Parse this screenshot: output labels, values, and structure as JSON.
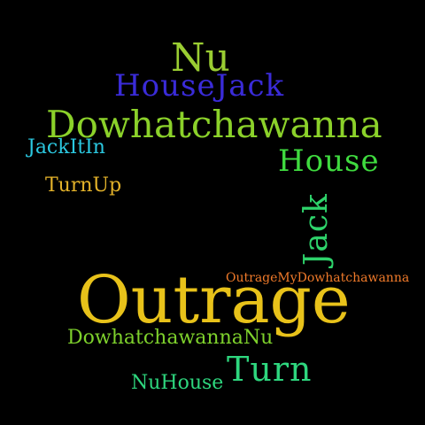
{
  "words": [
    {
      "text": "Nu",
      "color": "#9ACD32"
    },
    {
      "text": "HouseJack",
      "color": "#3A2BD8"
    },
    {
      "text": "Dowhatchawanna",
      "color": "#8BD12A"
    },
    {
      "text": "JackItIn",
      "color": "#2BC8E0"
    },
    {
      "text": "House",
      "color": "#3FDB3F"
    },
    {
      "text": "TurnUp",
      "color": "#E3B22A"
    },
    {
      "text": "Jack",
      "color": "#2ED36B"
    },
    {
      "text": "OutrageMyDowhatchawanna",
      "color": "#F07A2A"
    },
    {
      "text": "Outrage",
      "color": "#E8C21A"
    },
    {
      "text": "DowhatchawannaNu",
      "color": "#7ED12C"
    },
    {
      "text": "Turn",
      "color": "#2ED67E"
    },
    {
      "text": "NuHouse",
      "color": "#2ED67E"
    }
  ]
}
